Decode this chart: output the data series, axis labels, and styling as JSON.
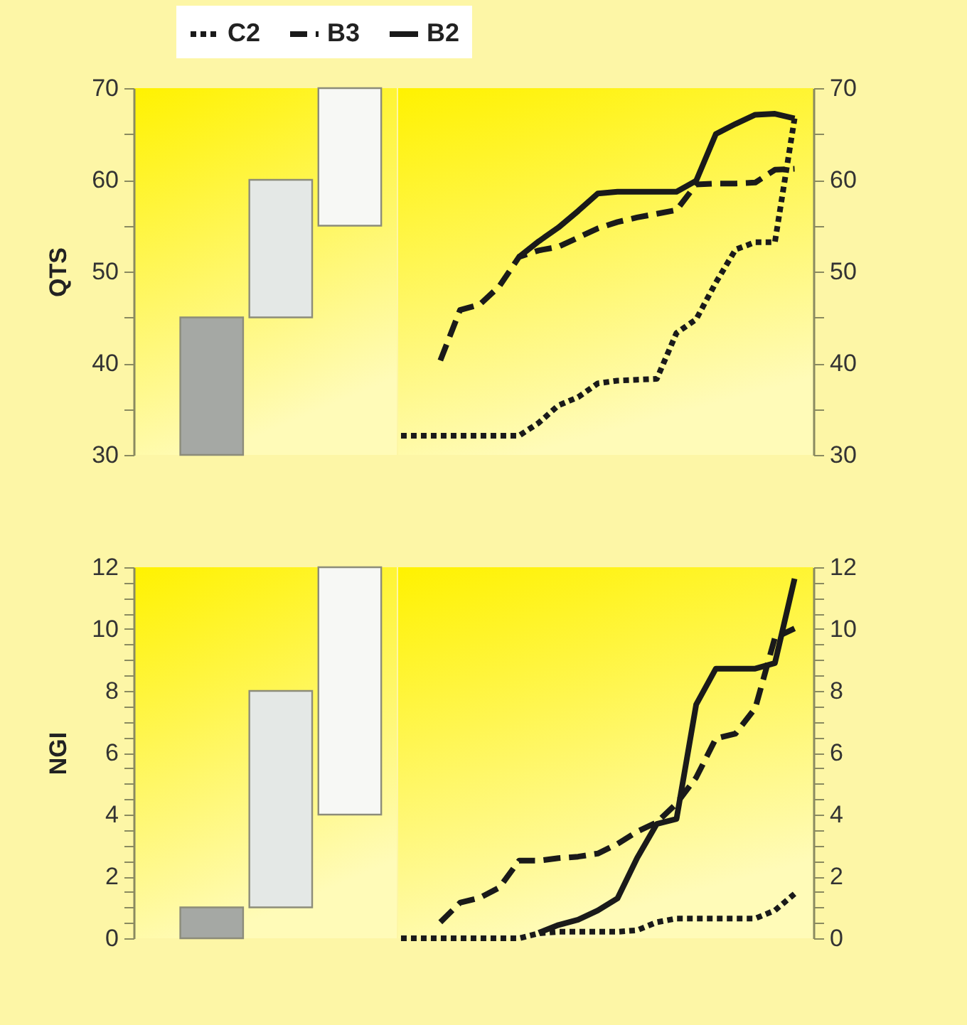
{
  "chart_data": [
    {
      "type": "bar",
      "ylabel": "QTS",
      "categories": [
        null,
        null,
        null
      ],
      "base": [
        30,
        45,
        55
      ],
      "values": [
        15,
        15,
        15
      ],
      "colors": [
        "#a5a8a4",
        "#e4e8e6",
        "#f7f8f5"
      ],
      "ylim": [
        30,
        70
      ],
      "yticks": [
        30,
        {
          "value": 35,
          "label": null
        },
        40,
        {
          "value": 45,
          "label": null
        },
        50,
        {
          "value": 55,
          "label": null
        },
        60,
        {
          "value": 65,
          "label": null
        },
        70
      ],
      "tick_labels": "y"
    },
    {
      "type": "line",
      "categories": [
        null,
        null,
        null,
        null,
        null,
        null,
        null,
        null,
        null,
        null,
        null,
        null,
        null,
        null,
        null,
        null,
        null,
        null,
        null,
        null,
        null
      ],
      "ylim": [
        30,
        70
      ],
      "yticks": [
        30,
        {
          "value": 35,
          "label": null
        },
        40,
        {
          "value": 45,
          "label": null
        },
        50,
        {
          "value": 55,
          "label": null
        },
        60,
        {
          "value": 65,
          "label": null
        },
        70
      ],
      "tick_labels": "y",
      "legend": "top left",
      "series": [
        {
          "name": "C2",
          "color": "#1a1a1a",
          "line_style": "dotted",
          "values": [
            32.1,
            32.1,
            32.1,
            32.1,
            32.1,
            32.1,
            32.1,
            33.5,
            35.4,
            36.3,
            37.8,
            38.1,
            38.2,
            38.3,
            43.3,
            44.8,
            48.8,
            52.4,
            53.2,
            53.2,
            66.7
          ]
        },
        {
          "name": "B3",
          "color": "#1a1a1a",
          "line_style": "dashed",
          "values": [
            null,
            null,
            40.3,
            45.8,
            46.4,
            48.4,
            51.6,
            52.3,
            52.7,
            53.7,
            54.7,
            55.4,
            55.9,
            56.3,
            56.7,
            59.5,
            59.6,
            59.6,
            59.7,
            61.1,
            61.2
          ]
        },
        {
          "name": "B2",
          "color": "#1a1a1a",
          "line_style": "solid",
          "values": [
            null,
            null,
            null,
            null,
            null,
            null,
            51.6,
            53.3,
            54.8,
            56.6,
            58.5,
            58.7,
            58.7,
            58.7,
            58.7,
            59.9,
            65.0,
            66.1,
            67.1,
            67.2,
            66.7
          ]
        }
      ]
    },
    {
      "type": "bar",
      "ylabel": "NGI",
      "categories": [
        null,
        null,
        null
      ],
      "base": [
        0,
        1,
        4
      ],
      "values": [
        1,
        7,
        8
      ],
      "colors": [
        "#a5a8a4",
        "#e4e8e6",
        "#f7f8f5"
      ],
      "ylim": [
        0,
        12
      ],
      "yticks": [
        0,
        {
          "value": 0.5,
          "label": null
        },
        {
          "value": 1,
          "label": null
        },
        {
          "value": 1.5,
          "label": null
        },
        2,
        {
          "value": 2.5,
          "label": null
        },
        {
          "value": 3,
          "label": null
        },
        {
          "value": 3.5,
          "label": null
        },
        4,
        {
          "value": 4.5,
          "label": null
        },
        {
          "value": 5,
          "label": null
        },
        {
          "value": 5.5,
          "label": null
        },
        6,
        {
          "value": 6.5,
          "label": null
        },
        {
          "value": 7,
          "label": null
        },
        {
          "value": 7.5,
          "label": null
        },
        8,
        {
          "value": 8.5,
          "label": null
        },
        {
          "value": 9,
          "label": null
        },
        {
          "value": 9.5,
          "label": null
        },
        10,
        {
          "value": 10.5,
          "label": null
        },
        {
          "value": 11,
          "label": null
        },
        {
          "value": 11.5,
          "label": null
        },
        12
      ],
      "tick_labels": "y"
    },
    {
      "type": "line",
      "categories": [
        null,
        null,
        null,
        null,
        null,
        null,
        null,
        null,
        null,
        null,
        null,
        null,
        null,
        null,
        null,
        null,
        null,
        null,
        null,
        null,
        null
      ],
      "ylim": [
        0,
        12
      ],
      "yticks": [
        0,
        {
          "value": 0.5,
          "label": null
        },
        {
          "value": 1,
          "label": null
        },
        {
          "value": 1.5,
          "label": null
        },
        2,
        {
          "value": 2.5,
          "label": null
        },
        {
          "value": 3,
          "label": null
        },
        {
          "value": 3.5,
          "label": null
        },
        4,
        {
          "value": 4.5,
          "label": null
        },
        {
          "value": 5,
          "label": null
        },
        {
          "value": 5.5,
          "label": null
        },
        6,
        {
          "value": 6.5,
          "label": null
        },
        {
          "value": 7,
          "label": null
        },
        {
          "value": 7.5,
          "label": null
        },
        8,
        {
          "value": 8.5,
          "label": null
        },
        {
          "value": 9,
          "label": null
        },
        {
          "value": 9.5,
          "label": null
        },
        10,
        {
          "value": 10.5,
          "label": null
        },
        {
          "value": 11,
          "label": null
        },
        {
          "value": 11.5,
          "label": null
        },
        12
      ],
      "tick_labels": "y",
      "series": [
        {
          "color": "#1a1a1a",
          "line_style": "dotted",
          "values": [
            0,
            0,
            0,
            0,
            0,
            0,
            0,
            0.16,
            0.21,
            0.21,
            0.21,
            0.21,
            0.26,
            0.52,
            0.64,
            0.64,
            0.64,
            0.64,
            0.64,
            0.9,
            1.44
          ]
        },
        {
          "color": "#1a1a1a",
          "line_style": "dashed",
          "values": [
            null,
            null,
            0.52,
            1.15,
            1.31,
            1.64,
            2.51,
            2.51,
            2.59,
            2.64,
            2.74,
            3.05,
            3.45,
            3.75,
            4.36,
            5.2,
            6.46,
            6.62,
            7.44,
            9.72,
            10.02
          ]
        },
        {
          "color": "#1a1a1a",
          "line_style": "solid",
          "values": [
            null,
            null,
            null,
            null,
            null,
            null,
            null,
            0.18,
            0.43,
            0.6,
            0.9,
            1.29,
            2.6,
            3.7,
            3.86,
            7.56,
            8.72,
            8.72,
            8.72,
            8.9,
            11.63
          ]
        }
      ]
    }
  ]
}
